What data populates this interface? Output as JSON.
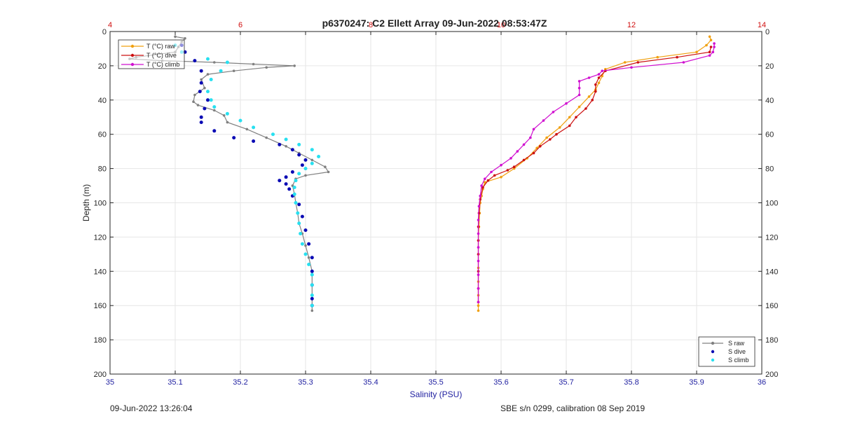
{
  "chart_data": {
    "type": "scatter",
    "title": "p6370247: C2 Ellett Array 09-Jun-2022 08:53:47Z",
    "xlabel": "Salinity (PSU)",
    "ylabel": "Depth (m)",
    "x_bottom": {
      "lim": [
        35,
        36
      ],
      "ticks": [
        "35",
        "35.1",
        "35.2",
        "35.3",
        "35.4",
        "35.5",
        "35.6",
        "35.7",
        "35.8",
        "35.9",
        "36"
      ],
      "color": "#1f1fa0"
    },
    "x_top": {
      "lim": [
        4,
        14
      ],
      "ticks": [
        "4",
        "6",
        "8",
        "10",
        "12",
        "14"
      ],
      "color": "#d01010"
    },
    "y": {
      "lim": [
        0,
        200
      ],
      "reversed": true,
      "ticks": [
        "0",
        "20",
        "40",
        "60",
        "80",
        "100",
        "120",
        "140",
        "160",
        "180",
        "200"
      ]
    },
    "grid": true,
    "legend_temperature": {
      "placement": "top-left",
      "entries": [
        "T (°C) raw",
        "T (°C) dive",
        "T (°C) climb"
      ]
    },
    "legend_salinity": {
      "placement": "bottom-right",
      "entries": [
        "S raw",
        "S dive",
        "S climb"
      ]
    },
    "series": [
      {
        "name": "S raw",
        "axis": "salinity",
        "style": "line-marker",
        "color": "#808080",
        "points": [
          [
            35.1,
            3
          ],
          [
            35.115,
            4
          ],
          [
            35.11,
            6
          ],
          [
            35.105,
            9
          ],
          [
            35.1,
            12
          ],
          [
            35.04,
            15
          ],
          [
            35.03,
            16
          ],
          [
            35.08,
            17
          ],
          [
            35.16,
            18
          ],
          [
            35.22,
            19
          ],
          [
            35.283,
            20
          ],
          [
            35.24,
            21
          ],
          [
            35.19,
            23
          ],
          [
            35.15,
            25
          ],
          [
            35.14,
            28
          ],
          [
            35.145,
            33
          ],
          [
            35.13,
            37
          ],
          [
            35.128,
            41
          ],
          [
            35.135,
            43
          ],
          [
            35.16,
            46
          ],
          [
            35.175,
            49
          ],
          [
            35.18,
            53
          ],
          [
            35.21,
            57
          ],
          [
            35.24,
            62
          ],
          [
            35.27,
            67
          ],
          [
            35.29,
            71
          ],
          [
            35.31,
            75
          ],
          [
            35.33,
            79
          ],
          [
            35.335,
            82
          ],
          [
            35.3,
            84
          ],
          [
            35.285,
            86
          ],
          [
            35.28,
            90
          ],
          [
            35.283,
            95
          ],
          [
            35.285,
            100
          ],
          [
            35.288,
            106
          ],
          [
            35.29,
            112
          ],
          [
            35.295,
            118
          ],
          [
            35.3,
            125
          ],
          [
            35.305,
            132
          ],
          [
            35.31,
            140
          ],
          [
            35.31,
            148
          ],
          [
            35.31,
            156
          ],
          [
            35.31,
            163
          ]
        ]
      },
      {
        "name": "S dive",
        "axis": "salinity",
        "style": "marker",
        "color": "#0a0ab4",
        "points": [
          [
            35.11,
            8
          ],
          [
            35.115,
            12
          ],
          [
            35.13,
            17
          ],
          [
            35.14,
            23
          ],
          [
            35.14,
            30
          ],
          [
            35.138,
            35
          ],
          [
            35.15,
            40
          ],
          [
            35.145,
            45
          ],
          [
            35.14,
            50
          ],
          [
            35.14,
            53
          ],
          [
            35.16,
            58
          ],
          [
            35.19,
            62
          ],
          [
            35.22,
            64
          ],
          [
            35.26,
            66
          ],
          [
            35.28,
            69
          ],
          [
            35.29,
            72
          ],
          [
            35.3,
            75
          ],
          [
            35.295,
            78
          ],
          [
            35.28,
            82
          ],
          [
            35.27,
            85
          ],
          [
            35.26,
            87
          ],
          [
            35.27,
            89
          ],
          [
            35.275,
            92
          ],
          [
            35.28,
            96
          ],
          [
            35.29,
            101
          ],
          [
            35.295,
            108
          ],
          [
            35.3,
            116
          ],
          [
            35.305,
            124
          ],
          [
            35.31,
            132
          ],
          [
            35.31,
            140
          ],
          [
            35.31,
            148
          ],
          [
            35.31,
            156
          ],
          [
            35.31,
            160
          ]
        ]
      },
      {
        "name": "S climb",
        "axis": "salinity",
        "style": "marker",
        "color": "#28e0f0",
        "points": [
          [
            35.1,
            8
          ],
          [
            35.11,
            12
          ],
          [
            35.15,
            16
          ],
          [
            35.18,
            18
          ],
          [
            35.17,
            23
          ],
          [
            35.155,
            28
          ],
          [
            35.15,
            35
          ],
          [
            35.155,
            40
          ],
          [
            35.16,
            44
          ],
          [
            35.18,
            48
          ],
          [
            35.2,
            52
          ],
          [
            35.22,
            56
          ],
          [
            35.25,
            60
          ],
          [
            35.27,
            63
          ],
          [
            35.29,
            66
          ],
          [
            35.31,
            69
          ],
          [
            35.32,
            73
          ],
          [
            35.31,
            77
          ],
          [
            35.3,
            80
          ],
          [
            35.29,
            83
          ],
          [
            35.285,
            87
          ],
          [
            35.283,
            91
          ],
          [
            35.283,
            95
          ],
          [
            35.285,
            100
          ],
          [
            35.288,
            106
          ],
          [
            35.29,
            112
          ],
          [
            35.292,
            118
          ],
          [
            35.295,
            124
          ],
          [
            35.3,
            130
          ],
          [
            35.305,
            136
          ],
          [
            35.31,
            142
          ],
          [
            35.31,
            148
          ],
          [
            35.31,
            154
          ],
          [
            35.31,
            160
          ]
        ]
      },
      {
        "name": "T (°C) raw",
        "axis": "temperature",
        "style": "line-marker",
        "color": "#f0a010",
        "points": [
          [
            13.2,
            3
          ],
          [
            13.22,
            5
          ],
          [
            13.15,
            8
          ],
          [
            13.0,
            12
          ],
          [
            12.4,
            15
          ],
          [
            11.9,
            18
          ],
          [
            11.6,
            22
          ],
          [
            11.55,
            26
          ],
          [
            11.5,
            30
          ],
          [
            11.45,
            34
          ],
          [
            11.35,
            38
          ],
          [
            11.2,
            44
          ],
          [
            11.05,
            50
          ],
          [
            10.9,
            56
          ],
          [
            10.7,
            62
          ],
          [
            10.55,
            68
          ],
          [
            10.4,
            74
          ],
          [
            10.2,
            80
          ],
          [
            10.0,
            85
          ],
          [
            9.75,
            88
          ],
          [
            9.72,
            92
          ],
          [
            9.7,
            96
          ],
          [
            9.68,
            100
          ],
          [
            9.67,
            106
          ],
          [
            9.66,
            114
          ],
          [
            9.65,
            122
          ],
          [
            9.65,
            130
          ],
          [
            9.65,
            138
          ],
          [
            9.65,
            146
          ],
          [
            9.65,
            154
          ],
          [
            9.65,
            160
          ],
          [
            9.65,
            163
          ]
        ]
      },
      {
        "name": "T (°C) dive",
        "axis": "temperature",
        "style": "line-marker",
        "color": "#cc1010",
        "points": [
          [
            13.22,
            9
          ],
          [
            13.2,
            12
          ],
          [
            12.7,
            15
          ],
          [
            12.1,
            18
          ],
          [
            11.6,
            23
          ],
          [
            11.5,
            27
          ],
          [
            11.45,
            31
          ],
          [
            11.45,
            35
          ],
          [
            11.4,
            40
          ],
          [
            11.3,
            45
          ],
          [
            11.15,
            50
          ],
          [
            11.05,
            55
          ],
          [
            10.85,
            60
          ],
          [
            10.75,
            63
          ],
          [
            10.6,
            67
          ],
          [
            10.5,
            71
          ],
          [
            10.35,
            75
          ],
          [
            10.2,
            79
          ],
          [
            10.1,
            81
          ],
          [
            9.9,
            84
          ],
          [
            9.8,
            87
          ],
          [
            9.72,
            91
          ],
          [
            9.68,
            98
          ],
          [
            9.66,
            106
          ],
          [
            9.65,
            114
          ],
          [
            9.65,
            122
          ],
          [
            9.65,
            130
          ],
          [
            9.65,
            140
          ],
          [
            9.65,
            150
          ],
          [
            9.65,
            158
          ]
        ]
      },
      {
        "name": "T (°C) climb",
        "axis": "temperature",
        "style": "line-marker",
        "color": "#d010d0",
        "points": [
          [
            13.27,
            7
          ],
          [
            13.27,
            9
          ],
          [
            13.25,
            12
          ],
          [
            13.2,
            14
          ],
          [
            12.8,
            18
          ],
          [
            12.0,
            21
          ],
          [
            11.55,
            23
          ],
          [
            11.5,
            25
          ],
          [
            11.35,
            27
          ],
          [
            11.2,
            29
          ],
          [
            11.2,
            33
          ],
          [
            11.2,
            37
          ],
          [
            11.0,
            42
          ],
          [
            10.8,
            47
          ],
          [
            10.65,
            52
          ],
          [
            10.5,
            57
          ],
          [
            10.45,
            62
          ],
          [
            10.35,
            66
          ],
          [
            10.25,
            70
          ],
          [
            10.15,
            74
          ],
          [
            10.0,
            78
          ],
          [
            9.85,
            82
          ],
          [
            9.75,
            86
          ],
          [
            9.7,
            90
          ],
          [
            9.68,
            96
          ],
          [
            9.66,
            102
          ],
          [
            9.65,
            110
          ],
          [
            9.65,
            118
          ],
          [
            9.65,
            126
          ],
          [
            9.65,
            134
          ],
          [
            9.65,
            142
          ],
          [
            9.65,
            150
          ],
          [
            9.65,
            158
          ]
        ]
      }
    ]
  },
  "footer": {
    "timestamp": "09-Jun-2022 13:26:04",
    "calibration": "SBE s/n 0299, calibration 08 Sep 2019"
  }
}
